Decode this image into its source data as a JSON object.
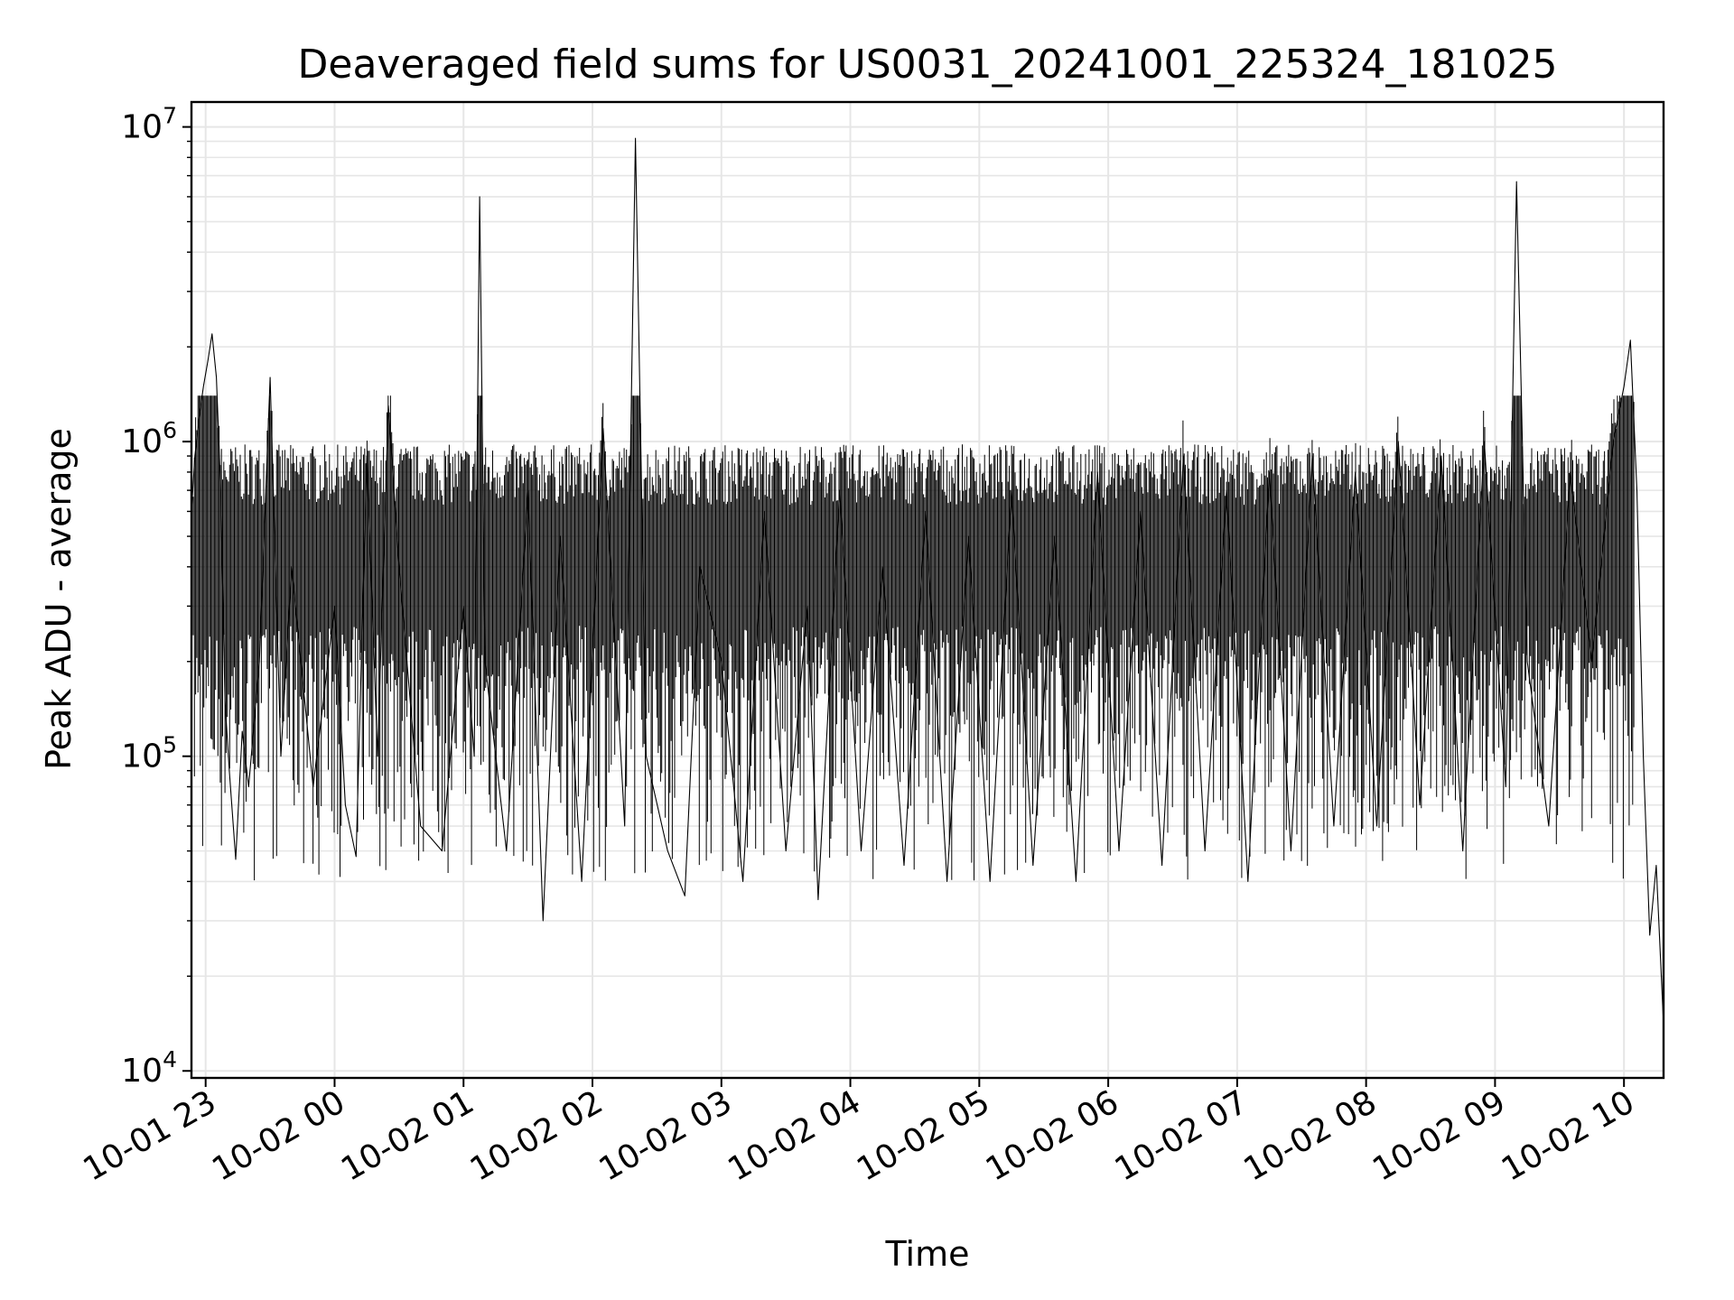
{
  "chart_data": {
    "type": "line",
    "title": "Deaveraged field sums for US0031_20241001_225324_181025",
    "xlabel": "Time",
    "ylabel": "Peak ADU - average",
    "yscale": "log",
    "ylim": [
      9500,
      12000000
    ],
    "xlim": [
      "2024-10-01 22:53:24",
      "2024-10-02 10:18:25"
    ],
    "grid": true,
    "line_color": "#000000",
    "grid_color": "#e6e6e6",
    "x_ticks": [
      "10-01 23",
      "10-02 00",
      "10-02 01",
      "10-02 02",
      "10-02 03",
      "10-02 04",
      "10-02 05",
      "10-02 06",
      "10-02 07",
      "10-02 08",
      "10-02 09",
      "10-02 10"
    ],
    "y_ticks": [
      {
        "base": "10",
        "exp": "4",
        "value": 10000
      },
      {
        "base": "10",
        "exp": "5",
        "value": 100000
      },
      {
        "base": "10",
        "exp": "6",
        "value": 1000000
      },
      {
        "base": "10",
        "exp": "7",
        "value": 10000000
      }
    ],
    "series": [
      {
        "points": [
          [
            "2024-10-01 22:53:24",
            600000
          ],
          [
            "2024-10-01 22:55:00",
            900000
          ],
          [
            "2024-10-01 22:57:00",
            1200000
          ],
          [
            "2024-10-01 22:59:00",
            1500000
          ],
          [
            "2024-10-01 23:01:00",
            1800000
          ],
          [
            "2024-10-01 23:03:00",
            2200000
          ],
          [
            "2024-10-01 23:05:00",
            1600000
          ],
          [
            "2024-10-01 23:07:00",
            700000
          ],
          [
            "2024-10-01 23:09:00",
            150000
          ],
          [
            "2024-10-01 23:11:00",
            90000
          ],
          [
            "2024-10-01 23:14:00",
            47000
          ],
          [
            "2024-10-01 23:17:00",
            120000
          ],
          [
            "2024-10-01 23:20:00",
            80000
          ],
          [
            "2024-10-01 23:25:00",
            200000
          ],
          [
            "2024-10-01 23:30:00",
            1600000
          ],
          [
            "2024-10-01 23:35:00",
            100000
          ],
          [
            "2024-10-01 23:40:00",
            400000
          ],
          [
            "2024-10-01 23:50:00",
            80000
          ],
          [
            "2024-10-02 00:00:00",
            300000
          ],
          [
            "2024-10-02 00:05:00",
            70000
          ],
          [
            "2024-10-02 00:10:00",
            48000
          ],
          [
            "2024-10-02 00:15:00",
            900000
          ],
          [
            "2024-10-02 00:20:00",
            100000
          ],
          [
            "2024-10-02 00:25:00",
            1300000
          ],
          [
            "2024-10-02 00:30:00",
            400000
          ],
          [
            "2024-10-02 00:40:00",
            60000
          ],
          [
            "2024-10-02 00:50:00",
            50000
          ],
          [
            "2024-10-02 01:00:00",
            300000
          ],
          [
            "2024-10-02 01:05:00",
            100000
          ],
          [
            "2024-10-02 01:07:30",
            6000000
          ],
          [
            "2024-10-02 01:10:00",
            200000
          ],
          [
            "2024-10-02 01:20:00",
            50000
          ],
          [
            "2024-10-02 01:30:00",
            700000
          ],
          [
            "2024-10-02 01:37:00",
            30000
          ],
          [
            "2024-10-02 01:45:00",
            500000
          ],
          [
            "2024-10-02 01:55:00",
            40000
          ],
          [
            "2024-10-02 02:05:00",
            1100000
          ],
          [
            "2024-10-02 02:15:00",
            60000
          ],
          [
            "2024-10-02 02:20:00",
            9200000
          ],
          [
            "2024-10-02 02:25:00",
            100000
          ],
          [
            "2024-10-02 02:35:00",
            50000
          ],
          [
            "2024-10-02 02:43:00",
            36000
          ],
          [
            "2024-10-02 02:50:00",
            400000
          ],
          [
            "2024-10-02 03:00:00",
            200000
          ],
          [
            "2024-10-02 03:10:00",
            40000
          ],
          [
            "2024-10-02 03:20:00",
            600000
          ],
          [
            "2024-10-02 03:30:00",
            50000
          ],
          [
            "2024-10-02 03:40:00",
            300000
          ],
          [
            "2024-10-02 03:45:00",
            35000
          ],
          [
            "2024-10-02 03:55:00",
            700000
          ],
          [
            "2024-10-02 04:05:00",
            50000
          ],
          [
            "2024-10-02 04:15:00",
            400000
          ],
          [
            "2024-10-02 04:25:00",
            45000
          ],
          [
            "2024-10-02 04:35:00",
            600000
          ],
          [
            "2024-10-02 04:45:00",
            40000
          ],
          [
            "2024-10-02 04:55:00",
            500000
          ],
          [
            "2024-10-02 05:05:00",
            40000
          ],
          [
            "2024-10-02 05:15:00",
            700000
          ],
          [
            "2024-10-02 05:25:00",
            45000
          ],
          [
            "2024-10-02 05:35:00",
            500000
          ],
          [
            "2024-10-02 05:45:00",
            40000
          ],
          [
            "2024-10-02 05:55:00",
            800000
          ],
          [
            "2024-10-02 06:05:00",
            50000
          ],
          [
            "2024-10-02 06:15:00",
            600000
          ],
          [
            "2024-10-02 06:25:00",
            45000
          ],
          [
            "2024-10-02 06:35:00",
            900000
          ],
          [
            "2024-10-02 06:45:00",
            50000
          ],
          [
            "2024-10-02 06:55:00",
            700000
          ],
          [
            "2024-10-02 07:05:00",
            40000
          ],
          [
            "2024-10-02 07:15:00",
            800000
          ],
          [
            "2024-10-02 07:25:00",
            50000
          ],
          [
            "2024-10-02 07:35:00",
            900000
          ],
          [
            "2024-10-02 07:45:00",
            60000
          ],
          [
            "2024-10-02 07:55:00",
            800000
          ],
          [
            "2024-10-02 08:05:00",
            60000
          ],
          [
            "2024-10-02 08:15:00",
            1000000
          ],
          [
            "2024-10-02 08:25:00",
            70000
          ],
          [
            "2024-10-02 08:35:00",
            900000
          ],
          [
            "2024-10-02 08:45:00",
            50000
          ],
          [
            "2024-10-02 08:55:00",
            1000000
          ],
          [
            "2024-10-02 09:05:00",
            80000
          ],
          [
            "2024-10-02 09:10:00",
            6700000
          ],
          [
            "2024-10-02 09:15:00",
            200000
          ],
          [
            "2024-10-02 09:25:00",
            60000
          ],
          [
            "2024-10-02 09:35:00",
            800000
          ],
          [
            "2024-10-02 09:45:00",
            200000
          ],
          [
            "2024-10-02 09:55:00",
            1000000
          ],
          [
            "2024-10-02 10:00:00",
            1500000
          ],
          [
            "2024-10-02 10:03:00",
            2100000
          ],
          [
            "2024-10-02 10:06:00",
            700000
          ],
          [
            "2024-10-02 10:09:00",
            100000
          ],
          [
            "2024-10-02 10:12:00",
            27000
          ],
          [
            "2024-10-02 10:15:00",
            45000
          ],
          [
            "2024-10-02 10:18:25",
            14000
          ]
        ]
      }
    ]
  }
}
